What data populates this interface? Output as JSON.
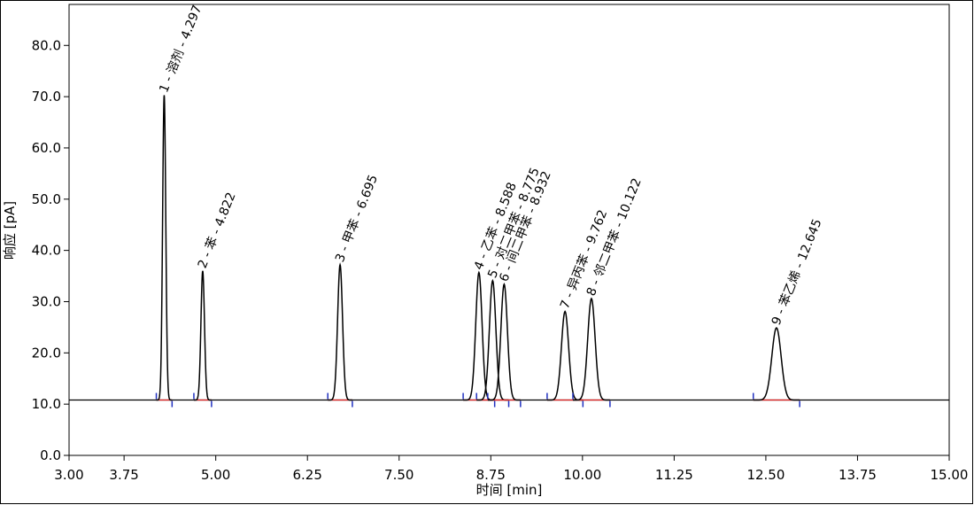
{
  "chart_data": {
    "type": "chromatogram",
    "xlabel": "时间 [min]",
    "ylabel": "响应 [pA]",
    "xlim": [
      3,
      15
    ],
    "xticks": [
      {
        "value": 3,
        "label": "3.00"
      },
      {
        "value": 3.75,
        "label": "3.75"
      },
      {
        "value": 5,
        "label": "5.00"
      },
      {
        "value": 6.25,
        "label": "6.25"
      },
      {
        "value": 7.5,
        "label": "7.50"
      },
      {
        "value": 8.75,
        "label": "8.75"
      },
      {
        "value": 10,
        "label": "10.00"
      },
      {
        "value": 11.25,
        "label": "11.25"
      },
      {
        "value": 12.5,
        "label": "12.50"
      },
      {
        "value": 13.75,
        "label": "13.75"
      },
      {
        "value": 15,
        "label": "15.00"
      }
    ],
    "ylim": [
      0,
      88
    ],
    "yticks": [
      {
        "value": 0,
        "label": "0.0"
      },
      {
        "value": 10,
        "label": "10.0"
      },
      {
        "value": 20,
        "label": "20.0"
      },
      {
        "value": 30,
        "label": "30.0"
      },
      {
        "value": 40,
        "label": "40.0"
      },
      {
        "value": 50,
        "label": "50.0"
      },
      {
        "value": 60,
        "label": "60.0"
      },
      {
        "value": 70,
        "label": "70.0"
      },
      {
        "value": 80,
        "label": "80.0"
      }
    ],
    "baseline": 10.8,
    "color": "#000000",
    "x": [
      4.297,
      4.822,
      6.695,
      8.588,
      8.775,
      8.932,
      9.762,
      10.122,
      12.645
    ],
    "values": [
      70.3,
      36.0,
      37.2,
      35.7,
      34.1,
      33.4,
      28.1,
      30.6,
      24.9
    ],
    "peak_labels": [
      "1 - 溶剂 - 4.297",
      "2 - 苯 - 4.822",
      "3 - 甲苯 - 6.695",
      "4 - 乙苯 - 8.588",
      "5 - 对二甲苯 - 8.775",
      "6 - 间二甲苯 - 8.932",
      "7 - 异丙苯 - 9.762",
      "8 - 邻二甲苯 - 10.122",
      "9 - 苯乙烯 - 12.645"
    ]
  }
}
